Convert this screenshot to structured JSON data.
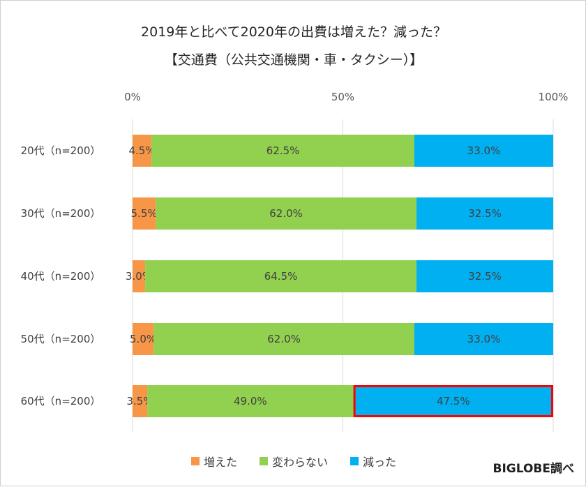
{
  "chart_data": {
    "type": "bar",
    "orientation": "horizontal",
    "stacked": "percent",
    "title": "2019年と比べて2020年の出費は増えた？減った？",
    "subtitle": "【交通費（公共交通機関・車・タクシー）】",
    "categories": [
      "20代（n=200）",
      "30代（n=200）",
      "40代（n=200）",
      "50代（n=200）",
      "60代（n=200）"
    ],
    "series": [
      {
        "name": "増えた",
        "color": "#F79646",
        "values": [
          4.5,
          5.5,
          3.0,
          5.0,
          3.5
        ],
        "labels": [
          "4.5%",
          "5.5%",
          "3.0%",
          "5.0%",
          "3.5%"
        ]
      },
      {
        "name": "変わらない",
        "color": "#92D050",
        "values": [
          62.5,
          62.0,
          64.5,
          62.0,
          49.0
        ],
        "labels": [
          "62.5%",
          "62.0%",
          "64.5%",
          "62.0%",
          "49.0%"
        ]
      },
      {
        "name": "減った",
        "color": "#00B0F0",
        "values": [
          33.0,
          32.5,
          32.5,
          33.0,
          47.5
        ],
        "labels": [
          "33.0%",
          "32.5%",
          "32.5%",
          "33.0%",
          "47.5%"
        ]
      }
    ],
    "xlim": [
      0,
      100
    ],
    "x_ticks": [
      "0%",
      "50%",
      "100%"
    ],
    "grid": true,
    "legend_position": "bottom",
    "highlight": {
      "category_index": 4,
      "series_index": 2,
      "color": "#FF0000"
    }
  },
  "credit": "BIGLOBE調べ"
}
